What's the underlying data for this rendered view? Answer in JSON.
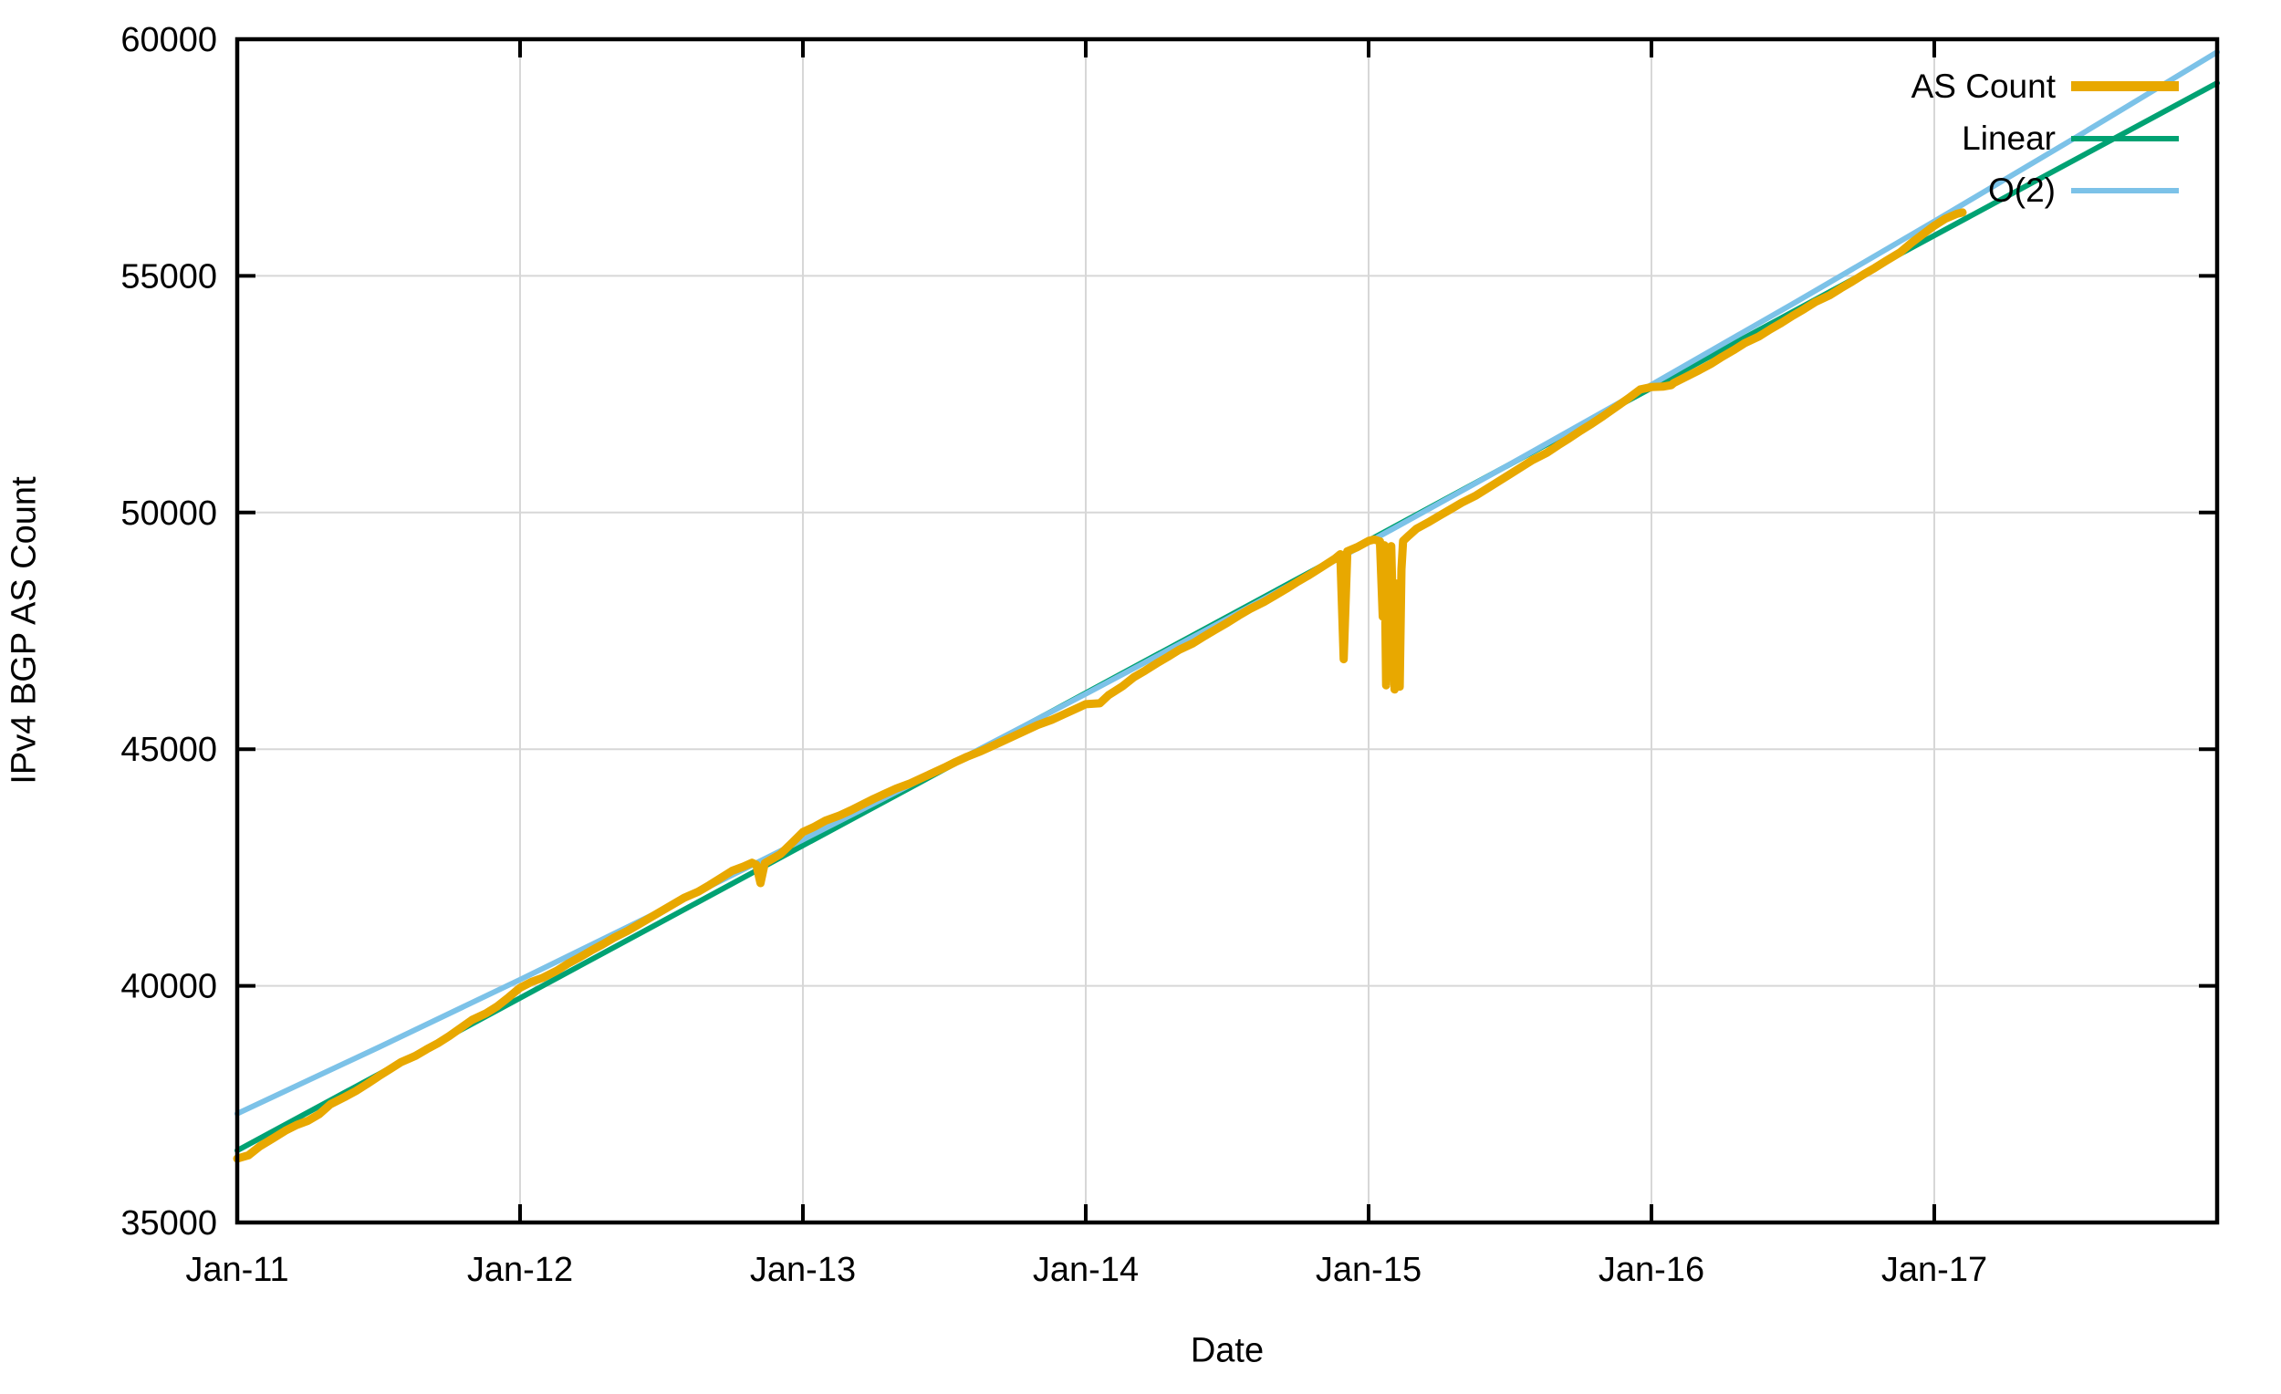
{
  "chart_data": {
    "type": "line",
    "title": "",
    "xlabel": "Date",
    "ylabel": "IPv4 BGP AS Count",
    "xlim": [
      2011.0,
      2018.0
    ],
    "ylim": [
      35000,
      60000
    ],
    "grid": true,
    "legend_position": "top-right-inside",
    "background": "#ffffff",
    "grid_color": "#d7d7d7",
    "axis_color": "#000000",
    "x_ticks": [
      {
        "label": "Jan-11",
        "value": 2011
      },
      {
        "label": "Jan-12",
        "value": 2012
      },
      {
        "label": "Jan-13",
        "value": 2013
      },
      {
        "label": "Jan-14",
        "value": 2014
      },
      {
        "label": "Jan-15",
        "value": 2015
      },
      {
        "label": "Jan-16",
        "value": 2016
      },
      {
        "label": "Jan-17",
        "value": 2017
      }
    ],
    "y_ticks": [
      {
        "label": "35000",
        "value": 35000
      },
      {
        "label": "40000",
        "value": 40000
      },
      {
        "label": "45000",
        "value": 45000
      },
      {
        "label": "50000",
        "value": 50000
      },
      {
        "label": "55000",
        "value": 55000
      },
      {
        "label": "60000",
        "value": 60000
      }
    ],
    "series": [
      {
        "name": "AS Count",
        "color": "#E8A800",
        "width": 9,
        "points": [
          [
            2011.0,
            36350
          ],
          [
            2011.04,
            36420
          ],
          [
            2011.08,
            36610
          ],
          [
            2011.13,
            36790
          ],
          [
            2011.17,
            36940
          ],
          [
            2011.21,
            37060
          ],
          [
            2011.25,
            37150
          ],
          [
            2011.29,
            37290
          ],
          [
            2011.33,
            37500
          ],
          [
            2011.38,
            37650
          ],
          [
            2011.42,
            37780
          ],
          [
            2011.46,
            37930
          ],
          [
            2011.5,
            38090
          ],
          [
            2011.54,
            38240
          ],
          [
            2011.58,
            38390
          ],
          [
            2011.63,
            38520
          ],
          [
            2011.67,
            38660
          ],
          [
            2011.71,
            38790
          ],
          [
            2011.75,
            38940
          ],
          [
            2011.79,
            39110
          ],
          [
            2011.83,
            39280
          ],
          [
            2011.88,
            39420
          ],
          [
            2011.92,
            39570
          ],
          [
            2011.96,
            39760
          ],
          [
            2012.0,
            39960
          ],
          [
            2012.04,
            40080
          ],
          [
            2012.08,
            40170
          ],
          [
            2012.13,
            40320
          ],
          [
            2012.17,
            40470
          ],
          [
            2012.21,
            40600
          ],
          [
            2012.25,
            40740
          ],
          [
            2012.29,
            40870
          ],
          [
            2012.33,
            41010
          ],
          [
            2012.38,
            41160
          ],
          [
            2012.42,
            41300
          ],
          [
            2012.46,
            41440
          ],
          [
            2012.5,
            41580
          ],
          [
            2012.54,
            41720
          ],
          [
            2012.58,
            41860
          ],
          [
            2012.63,
            41990
          ],
          [
            2012.67,
            42130
          ],
          [
            2012.71,
            42280
          ],
          [
            2012.75,
            42430
          ],
          [
            2012.79,
            42520
          ],
          [
            2012.82,
            42600
          ],
          [
            2012.835,
            42560
          ],
          [
            2012.85,
            42170
          ],
          [
            2012.865,
            42590
          ],
          [
            2012.92,
            42780
          ],
          [
            2012.96,
            43010
          ],
          [
            2013.0,
            43250
          ],
          [
            2013.04,
            43360
          ],
          [
            2013.08,
            43490
          ],
          [
            2013.13,
            43600
          ],
          [
            2013.17,
            43710
          ],
          [
            2013.21,
            43830
          ],
          [
            2013.25,
            43950
          ],
          [
            2013.29,
            44060
          ],
          [
            2013.33,
            44170
          ],
          [
            2013.38,
            44280
          ],
          [
            2013.42,
            44390
          ],
          [
            2013.46,
            44500
          ],
          [
            2013.5,
            44610
          ],
          [
            2013.54,
            44730
          ],
          [
            2013.58,
            44840
          ],
          [
            2013.63,
            44960
          ],
          [
            2013.67,
            45070
          ],
          [
            2013.71,
            45180
          ],
          [
            2013.75,
            45290
          ],
          [
            2013.79,
            45400
          ],
          [
            2013.83,
            45510
          ],
          [
            2013.88,
            45620
          ],
          [
            2013.92,
            45730
          ],
          [
            2013.96,
            45840
          ],
          [
            2014.0,
            45950
          ],
          [
            2014.05,
            45970
          ],
          [
            2014.08,
            46140
          ],
          [
            2014.13,
            46330
          ],
          [
            2014.17,
            46520
          ],
          [
            2014.21,
            46660
          ],
          [
            2014.25,
            46810
          ],
          [
            2014.29,
            46950
          ],
          [
            2014.33,
            47100
          ],
          [
            2014.38,
            47240
          ],
          [
            2014.42,
            47390
          ],
          [
            2014.46,
            47530
          ],
          [
            2014.5,
            47670
          ],
          [
            2014.54,
            47820
          ],
          [
            2014.58,
            47960
          ],
          [
            2014.63,
            48110
          ],
          [
            2014.67,
            48250
          ],
          [
            2014.71,
            48390
          ],
          [
            2014.75,
            48540
          ],
          [
            2014.79,
            48680
          ],
          [
            2014.83,
            48830
          ],
          [
            2014.88,
            49020
          ],
          [
            2014.9,
            49120
          ],
          [
            2014.912,
            46900
          ],
          [
            2014.925,
            49180
          ],
          [
            2014.96,
            49270
          ],
          [
            2015.0,
            49400
          ],
          [
            2015.02,
            49430
          ],
          [
            2015.04,
            49390
          ],
          [
            2015.05,
            47800
          ],
          [
            2015.056,
            49310
          ],
          [
            2015.062,
            46350
          ],
          [
            2015.068,
            49260
          ],
          [
            2015.074,
            47100
          ],
          [
            2015.08,
            49290
          ],
          [
            2015.086,
            47750
          ],
          [
            2015.092,
            46260
          ],
          [
            2015.098,
            48500
          ],
          [
            2015.104,
            46450
          ],
          [
            2015.11,
            46320
          ],
          [
            2015.116,
            48800
          ],
          [
            2015.122,
            49400
          ],
          [
            2015.14,
            49500
          ],
          [
            2015.17,
            49660
          ],
          [
            2015.21,
            49790
          ],
          [
            2015.25,
            49930
          ],
          [
            2015.29,
            50070
          ],
          [
            2015.33,
            50210
          ],
          [
            2015.38,
            50360
          ],
          [
            2015.42,
            50510
          ],
          [
            2015.46,
            50660
          ],
          [
            2015.5,
            50810
          ],
          [
            2015.54,
            50960
          ],
          [
            2015.58,
            51110
          ],
          [
            2015.63,
            51260
          ],
          [
            2015.67,
            51420
          ],
          [
            2015.71,
            51570
          ],
          [
            2015.75,
            51730
          ],
          [
            2015.79,
            51880
          ],
          [
            2015.83,
            52040
          ],
          [
            2015.88,
            52250
          ],
          [
            2015.92,
            52420
          ],
          [
            2015.96,
            52600
          ],
          [
            2016.0,
            52650
          ],
          [
            2016.04,
            52660
          ],
          [
            2016.07,
            52690
          ],
          [
            2016.08,
            52740
          ],
          [
            2016.13,
            52890
          ],
          [
            2016.17,
            53010
          ],
          [
            2016.21,
            53140
          ],
          [
            2016.25,
            53290
          ],
          [
            2016.29,
            53430
          ],
          [
            2016.33,
            53580
          ],
          [
            2016.38,
            53720
          ],
          [
            2016.42,
            53870
          ],
          [
            2016.46,
            54010
          ],
          [
            2016.5,
            54160
          ],
          [
            2016.54,
            54300
          ],
          [
            2016.58,
            54450
          ],
          [
            2016.63,
            54590
          ],
          [
            2016.67,
            54740
          ],
          [
            2016.71,
            54880
          ],
          [
            2016.75,
            55030
          ],
          [
            2016.79,
            55170
          ],
          [
            2016.83,
            55320
          ],
          [
            2016.88,
            55500
          ],
          [
            2016.92,
            55700
          ],
          [
            2016.96,
            55880
          ],
          [
            2017.0,
            56060
          ],
          [
            2017.04,
            56210
          ],
          [
            2017.08,
            56310
          ],
          [
            2017.1,
            56340
          ]
        ]
      },
      {
        "name": "Linear",
        "color": "#00A273",
        "width": 6,
        "points": [
          [
            2011.0,
            36520
          ],
          [
            2018.0,
            59074
          ]
        ]
      },
      {
        "name": "O(2)",
        "color": "#7CC2E8",
        "width": 6,
        "points": [
          [
            2011.0,
            37300
          ],
          [
            2011.5,
            38700
          ],
          [
            2012.0,
            40132
          ],
          [
            2012.5,
            41595
          ],
          [
            2013.0,
            43088
          ],
          [
            2013.5,
            44613
          ],
          [
            2014.0,
            46168
          ],
          [
            2014.5,
            47755
          ],
          [
            2015.0,
            49372
          ],
          [
            2015.5,
            51021
          ],
          [
            2016.0,
            52700
          ],
          [
            2016.5,
            54411
          ],
          [
            2017.0,
            56152
          ],
          [
            2017.5,
            57925
          ],
          [
            2018.0,
            59728
          ]
        ]
      }
    ]
  }
}
